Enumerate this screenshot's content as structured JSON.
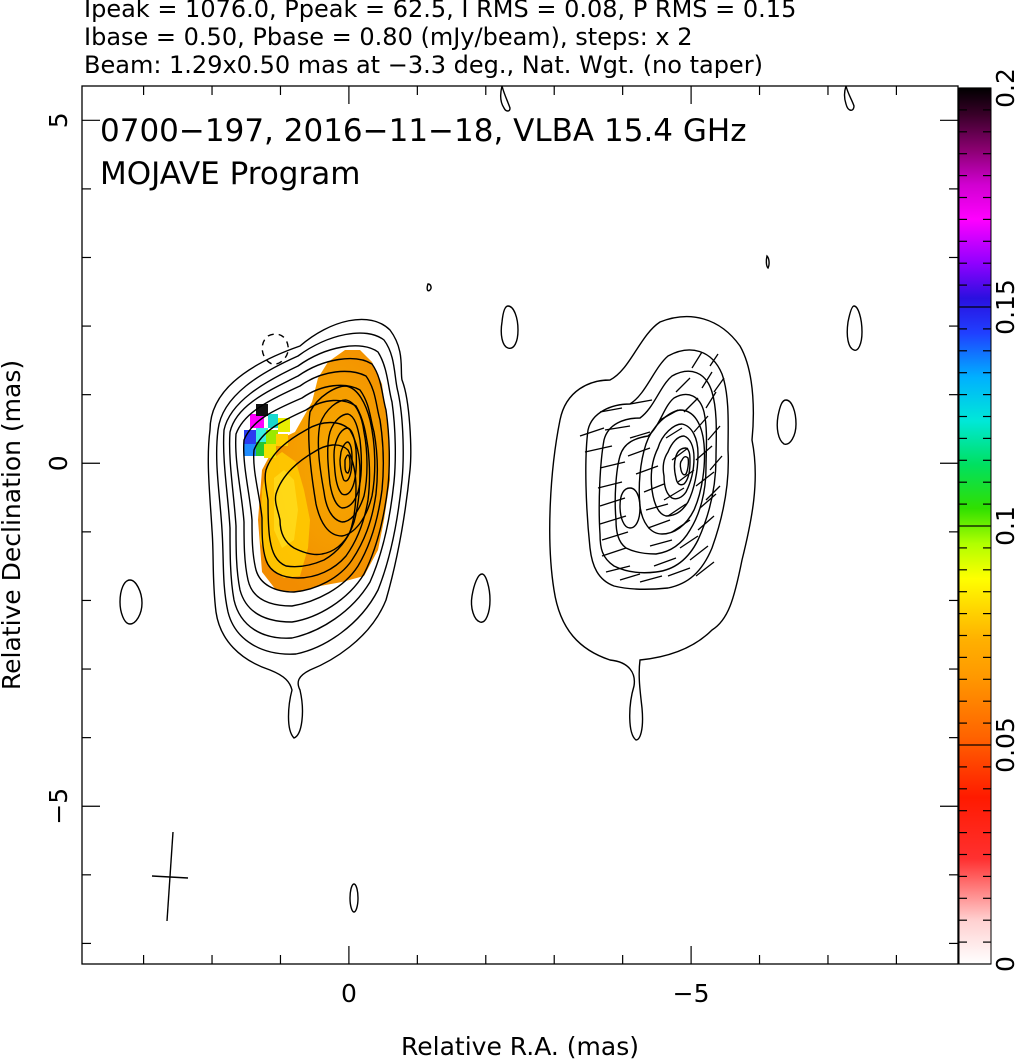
{
  "header": {
    "line1": "Ipeak = 1076.0, Ppeak = 62.5, I RMS = 0.08, P RMS = 0.15",
    "line2": "Ibase = 0.50, Pbase = 0.80 (mJy/beam), steps: x 2",
    "line3": "Beam: 1.29x0.50 mas at −3.3 deg., Nat. Wgt. (no taper)"
  },
  "chart_data": {
    "type": "heatmap",
    "title": "0700−197, 2016−11−18, VLBA 15.4 GHz",
    "subtitle": "MOJAVE Program",
    "xlabel": "Relative R.A. (mas)",
    "ylabel": "Relative Declination (mas)",
    "xlim": [
      3.9,
      -8.9
    ],
    "ylim": [
      -7.3,
      5.5
    ],
    "x_ticks": [
      0,
      -5
    ],
    "x_tick_labels": [
      "0",
      "−5"
    ],
    "y_ticks": [
      5,
      0,
      -5
    ],
    "y_tick_labels": [
      "5",
      "0",
      "−5"
    ],
    "colorbar": {
      "range": [
        0,
        0.2
      ],
      "ticks": [
        0,
        0.05,
        0.1,
        0.15,
        0.2
      ],
      "tick_labels": [
        "0",
        "0.05",
        "0.1",
        "0.15",
        "0.2"
      ]
    },
    "beam": {
      "major_mas": 1.29,
      "minor_mas": 0.5,
      "pa_deg": -3.3,
      "center": [
        2.65,
        -6.15
      ]
    },
    "contours": {
      "base_mJy_per_beam": 0.5,
      "step_factor": 2
    },
    "panels": [
      {
        "name": "total intensity with fractional polarization",
        "core": [
          0,
          0
        ]
      },
      {
        "name": "polarized intensity with EVPA",
        "core": [
          -5,
          0
        ]
      }
    ]
  }
}
